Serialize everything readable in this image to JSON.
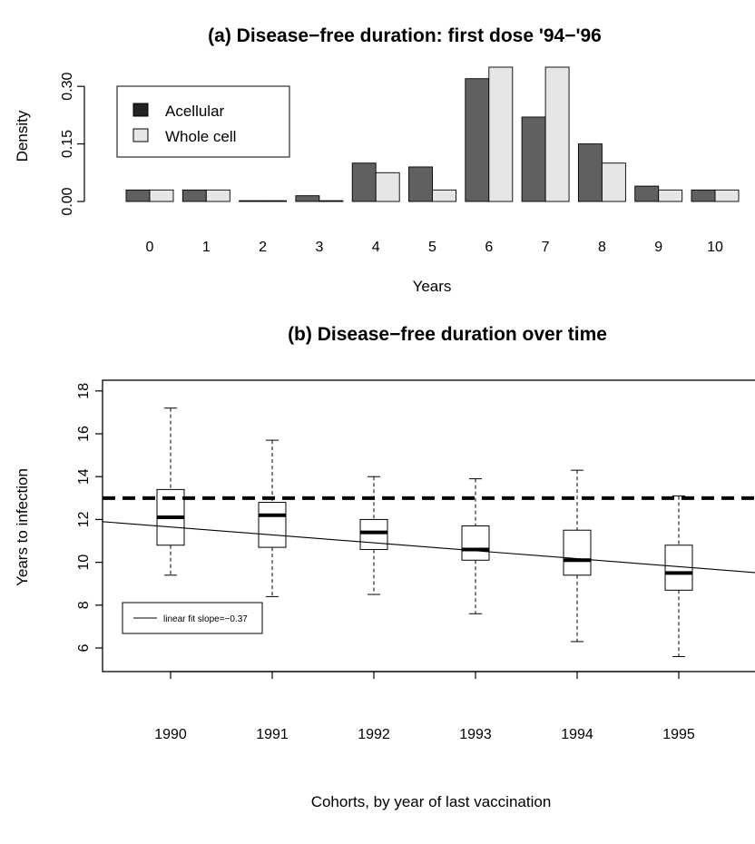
{
  "chart_data": [
    {
      "type": "bar",
      "title": "(a) Disease−free duration: first dose '94−'96",
      "xlabel": "Years",
      "ylabel": "Density",
      "categories": [
        "0",
        "1",
        "2",
        "3",
        "4",
        "5",
        "6",
        "7",
        "8",
        "9",
        "10"
      ],
      "series": [
        {
          "name": "Acellular",
          "color": "#606060",
          "values": [
            0.03,
            0.03,
            0.002,
            0.015,
            0.1,
            0.09,
            0.32,
            0.22,
            0.15,
            0.04,
            0.03
          ]
        },
        {
          "name": "Whole cell",
          "color": "#e6e6e6",
          "values": [
            0.03,
            0.03,
            0.002,
            0.002,
            0.075,
            0.03,
            0.35,
            0.35,
            0.1,
            0.03,
            0.03
          ]
        }
      ],
      "ylim": [
        0,
        0.35
      ],
      "yticks": [
        "0.00",
        "0.15",
        "0.30"
      ],
      "ytick_values": [
        0,
        0.15,
        0.3
      ],
      "legend_position": "top-left",
      "grid": false
    },
    {
      "type": "boxplot",
      "title": "(b) Disease−free duration over time",
      "xlabel": "Cohorts, by year of last vaccination",
      "ylabel": "Years to infection",
      "categories": [
        "1990",
        "1991",
        "1992",
        "1993",
        "1994",
        "1995"
      ],
      "boxes": [
        {
          "min": 9.4,
          "q1": 10.8,
          "median": 12.1,
          "q3": 13.4,
          "max": 17.2
        },
        {
          "min": 8.4,
          "q1": 10.7,
          "median": 12.2,
          "q3": 12.8,
          "max": 15.7
        },
        {
          "min": 8.5,
          "q1": 10.6,
          "median": 11.4,
          "q3": 12.0,
          "max": 14.0
        },
        {
          "min": 7.6,
          "q1": 10.1,
          "median": 10.6,
          "q3": 11.7,
          "max": 13.9
        },
        {
          "min": 6.3,
          "q1": 9.4,
          "median": 10.1,
          "q3": 11.5,
          "max": 14.3
        },
        {
          "min": 5.6,
          "q1": 8.7,
          "median": 9.5,
          "q3": 10.8,
          "max": 13.1
        }
      ],
      "reference_line": 13.0,
      "fit_line": {
        "label": "linear fit slope=−0.37",
        "y_at_first": 11.65,
        "slope": -0.37
      },
      "ylim": [
        4.9,
        18.5
      ],
      "yticks": [
        "6",
        "8",
        "10",
        "12",
        "14",
        "16",
        "18"
      ],
      "ytick_values": [
        6,
        8,
        10,
        12,
        14,
        16,
        18
      ],
      "legend_position": "bottom-left",
      "grid": false
    }
  ]
}
